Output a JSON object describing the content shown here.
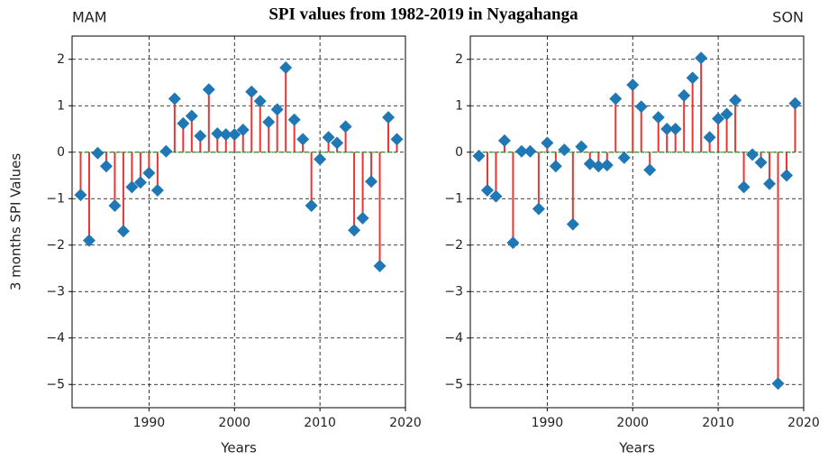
{
  "title": "SPI values from 1982-2019 in Nyagahanga",
  "chart_data": [
    {
      "type": "stem",
      "title": "MAM",
      "title_align": "left",
      "ylabel": "3 months SPI Values",
      "xlabel": "Years",
      "x": [
        1982,
        1983,
        1984,
        1985,
        1986,
        1987,
        1988,
        1989,
        1990,
        1991,
        1992,
        1993,
        1994,
        1995,
        1996,
        1997,
        1998,
        1999,
        2000,
        2001,
        2002,
        2003,
        2004,
        2005,
        2006,
        2007,
        2008,
        2009,
        2010,
        2011,
        2012,
        2013,
        2014,
        2015,
        2016,
        2017,
        2018,
        2019
      ],
      "values": [
        -0.92,
        -1.9,
        -0.02,
        -0.3,
        -1.15,
        -1.7,
        -0.75,
        -0.65,
        -0.45,
        -0.82,
        0.02,
        1.15,
        0.62,
        0.78,
        0.35,
        1.35,
        0.4,
        0.38,
        0.38,
        0.48,
        1.3,
        1.1,
        0.65,
        0.92,
        1.82,
        0.7,
        0.28,
        -1.15,
        -0.15,
        0.32,
        0.2,
        0.55,
        -1.68,
        -1.42,
        -0.63,
        -2.45,
        0.75,
        0.28
      ],
      "xlim": [
        1981,
        2020
      ],
      "ylim": [
        -5.5,
        2.5
      ],
      "xticks": [
        1990,
        2000,
        2010,
        2020
      ],
      "yticks": [
        {
          "value": -5,
          "label": "−5"
        },
        {
          "value": -4,
          "label": "−4"
        },
        {
          "value": -3,
          "label": "−3"
        },
        {
          "value": -2,
          "label": "−2"
        },
        {
          "value": -1,
          "label": "−1"
        },
        0,
        1,
        2
      ],
      "grid": true,
      "stem_color": "#ee3333",
      "marker_color": "#1f77b4",
      "baseline_color": "#2ca02c"
    },
    {
      "type": "stem",
      "title": "SON",
      "title_align": "right",
      "xlabel": "Years",
      "x": [
        1982,
        1983,
        1984,
        1985,
        1986,
        1987,
        1988,
        1989,
        1990,
        1991,
        1992,
        1993,
        1994,
        1995,
        1996,
        1997,
        1998,
        1999,
        2000,
        2001,
        2002,
        2003,
        2004,
        2005,
        2006,
        2007,
        2008,
        2009,
        2010,
        2011,
        2012,
        2013,
        2014,
        2015,
        2016,
        2017,
        2018,
        2019
      ],
      "values": [
        -0.08,
        -0.82,
        -0.95,
        0.25,
        -1.95,
        0.02,
        0.02,
        -1.22,
        0.2,
        -0.3,
        0.05,
        -1.55,
        0.12,
        -0.25,
        -0.3,
        -0.28,
        1.15,
        -0.12,
        1.45,
        0.98,
        -0.38,
        0.75,
        0.5,
        0.5,
        1.22,
        1.6,
        2.03,
        0.32,
        0.72,
        0.82,
        1.12,
        -0.75,
        -0.05,
        -0.22,
        -0.68,
        -4.98,
        -0.5,
        1.05
      ],
      "xlim": [
        1981,
        2020
      ],
      "ylim": [
        -5.5,
        2.5
      ],
      "xticks": [
        1990,
        2000,
        2010,
        2020
      ],
      "yticks": [
        {
          "value": -5,
          "label": "−5"
        },
        {
          "value": -4,
          "label": "−4"
        },
        {
          "value": -3,
          "label": "−3"
        },
        {
          "value": -2,
          "label": "−2"
        },
        {
          "value": -1,
          "label": "−1"
        },
        0,
        1,
        2
      ],
      "grid": true,
      "stem_color": "#ee3333",
      "marker_color": "#1f77b4",
      "baseline_color": "#2ca02c"
    }
  ]
}
